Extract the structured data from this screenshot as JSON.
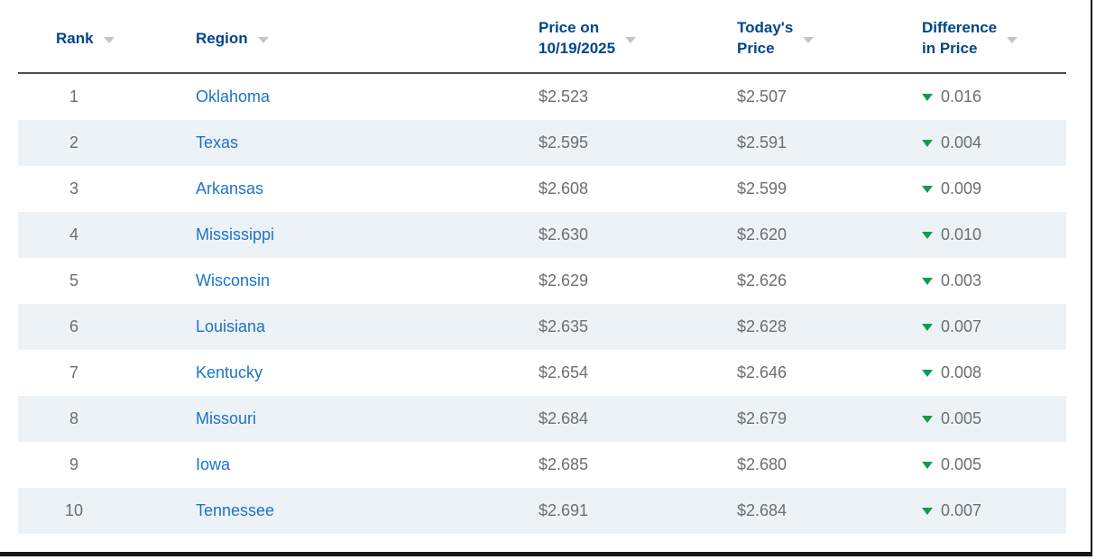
{
  "colors": {
    "header_text": "#00458b",
    "region_link": "#1b74c5",
    "cell_text": "#6e6e6e",
    "stripe_background": "#edf2f7",
    "sort_icon": "#c5c5c5",
    "price_down_icon": "#0b9e4f",
    "header_rule": "#4d4d4d",
    "window_border": "#161616"
  },
  "table": {
    "columns": [
      {
        "key": "rank",
        "label": "Rank",
        "sortable": true
      },
      {
        "key": "region",
        "label": "Region",
        "sortable": true
      },
      {
        "key": "price_prev",
        "label": "Price on\n10/19/2025",
        "sortable": true
      },
      {
        "key": "price_today",
        "label": "Today's\nPrice",
        "sortable": true
      },
      {
        "key": "diff",
        "label": "Difference\nin Price",
        "sortable": true
      }
    ],
    "rows": [
      {
        "rank": "1",
        "region": "Oklahoma",
        "price_prev": "$2.523",
        "price_today": "$2.507",
        "diff": "0.016",
        "diff_direction": "down"
      },
      {
        "rank": "2",
        "region": "Texas",
        "price_prev": "$2.595",
        "price_today": "$2.591",
        "diff": "0.004",
        "diff_direction": "down"
      },
      {
        "rank": "3",
        "region": "Arkansas",
        "price_prev": "$2.608",
        "price_today": "$2.599",
        "diff": "0.009",
        "diff_direction": "down"
      },
      {
        "rank": "4",
        "region": "Mississippi",
        "price_prev": "$2.630",
        "price_today": "$2.620",
        "diff": "0.010",
        "diff_direction": "down"
      },
      {
        "rank": "5",
        "region": "Wisconsin",
        "price_prev": "$2.629",
        "price_today": "$2.626",
        "diff": "0.003",
        "diff_direction": "down"
      },
      {
        "rank": "6",
        "region": "Louisiana",
        "price_prev": "$2.635",
        "price_today": "$2.628",
        "diff": "0.007",
        "diff_direction": "down"
      },
      {
        "rank": "7",
        "region": "Kentucky",
        "price_prev": "$2.654",
        "price_today": "$2.646",
        "diff": "0.008",
        "diff_direction": "down"
      },
      {
        "rank": "8",
        "region": "Missouri",
        "price_prev": "$2.684",
        "price_today": "$2.679",
        "diff": "0.005",
        "diff_direction": "down"
      },
      {
        "rank": "9",
        "region": "Iowa",
        "price_prev": "$2.685",
        "price_today": "$2.680",
        "diff": "0.005",
        "diff_direction": "down"
      },
      {
        "rank": "10",
        "region": "Tennessee",
        "price_prev": "$2.691",
        "price_today": "$2.684",
        "diff": "0.007",
        "diff_direction": "down"
      }
    ]
  }
}
